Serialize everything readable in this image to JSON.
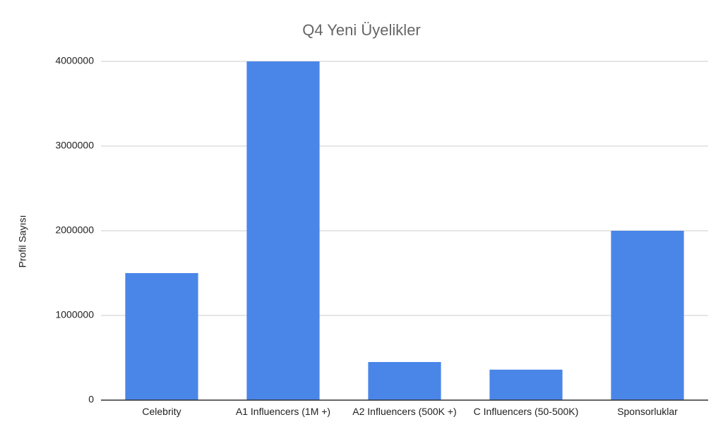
{
  "chart_data": {
    "type": "bar",
    "title": "Q4 Yeni Üyelikler",
    "y_label": "Profil Sayısı",
    "categories": [
      "Celebrity",
      "A1 Influencers (1M +)",
      "A2 Influencers (500K +)",
      "C Influencers (50-500K)",
      "Sponsorluklar"
    ],
    "values": [
      1500000,
      4000000,
      450000,
      360000,
      2000000
    ],
    "color": "#4a86e8",
    "ylim": [
      0,
      4000000
    ],
    "yticks": [
      0,
      1000000,
      2000000,
      3000000,
      4000000
    ],
    "grid": true
  }
}
